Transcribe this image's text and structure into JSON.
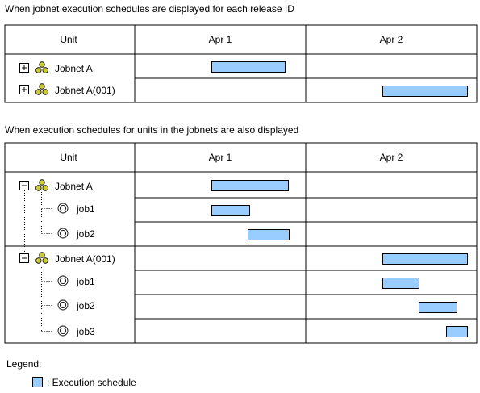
{
  "figure1": {
    "caption": "When jobnet execution schedules are displayed for each release ID",
    "header": {
      "unit": "Unit",
      "day1": "Apr 1",
      "day2": "Apr 2"
    },
    "rows": [
      {
        "name": "Jobnet A",
        "type": "jobnet",
        "expander": "plus",
        "schedule": {
          "start": 0.45,
          "end": 0.88
        }
      },
      {
        "name": "Jobnet A(001)",
        "type": "jobnet",
        "expander": "plus",
        "schedule": {
          "start": 1.45,
          "end": 2.0
        }
      }
    ]
  },
  "figure2": {
    "caption": "When execution schedules for units in the jobnets are also displayed",
    "header": {
      "unit": "Unit",
      "day1": "Apr 1",
      "day2": "Apr 2"
    },
    "rows": [
      {
        "name": "Jobnet A",
        "type": "jobnet",
        "expander": "minus",
        "level": 0,
        "schedule": {
          "start": 0.45,
          "end": 0.9
        }
      },
      {
        "name": "job1",
        "type": "job",
        "level": 1,
        "schedule": {
          "start": 0.45,
          "end": 0.67
        }
      },
      {
        "name": "job2",
        "type": "job",
        "level": 1,
        "schedule": {
          "start": 0.66,
          "end": 0.9
        }
      },
      {
        "name": "Jobnet A(001)",
        "type": "jobnet",
        "expander": "minus",
        "level": 0,
        "schedule": {
          "start": 1.45,
          "end": 2.0
        }
      },
      {
        "name": "job1",
        "type": "job",
        "level": 1,
        "schedule": {
          "start": 1.45,
          "end": 1.66
        }
      },
      {
        "name": "job2",
        "type": "job",
        "level": 1,
        "schedule": {
          "start": 1.66,
          "end": 1.88
        }
      },
      {
        "name": "job3",
        "type": "job",
        "level": 1,
        "schedule": {
          "start": 1.82,
          "end": 2.0
        }
      }
    ]
  },
  "legend": {
    "title": "Legend:",
    "item": ": Execution schedule"
  },
  "colors": {
    "bar_fill": "#99CCFF",
    "bar_stroke": "#000000",
    "border": "#000000",
    "jobnet_icon": "#CCCC33"
  }
}
